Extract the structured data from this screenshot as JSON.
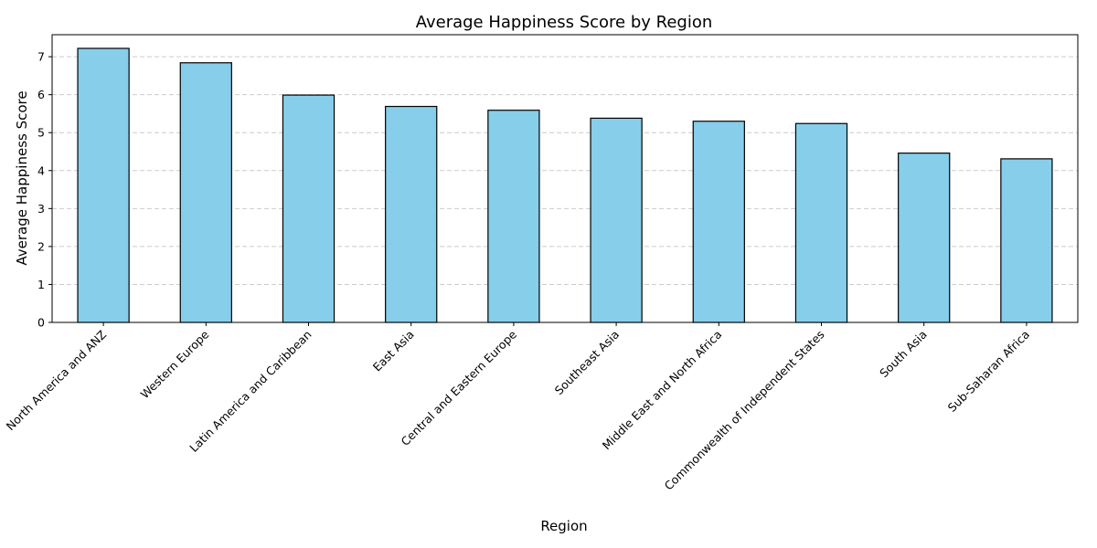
{
  "chart_data": {
    "type": "bar",
    "title": "Average Happiness Score by Region",
    "xlabel": "Region",
    "ylabel": "Average Happiness Score",
    "categories": [
      "North America and ANZ",
      "Western Europe",
      "Latin America and Caribbean",
      "East Asia",
      "Central and Eastern Europe",
      "Southeast Asia",
      "Middle East and North Africa",
      "Commonwealth of Independent States",
      "South Asia",
      "Sub-Saharan Africa"
    ],
    "values": [
      7.22,
      6.84,
      5.99,
      5.69,
      5.59,
      5.38,
      5.3,
      5.24,
      4.46,
      4.31
    ],
    "ylim": [
      0,
      7.58
    ],
    "yticks": [
      "0",
      "1",
      "2",
      "3",
      "4",
      "5",
      "6",
      "7"
    ],
    "grid": "y-dashed",
    "colors": {
      "bar": "#87CEEB",
      "edge": "#000000",
      "grid": "#cccccc"
    }
  }
}
